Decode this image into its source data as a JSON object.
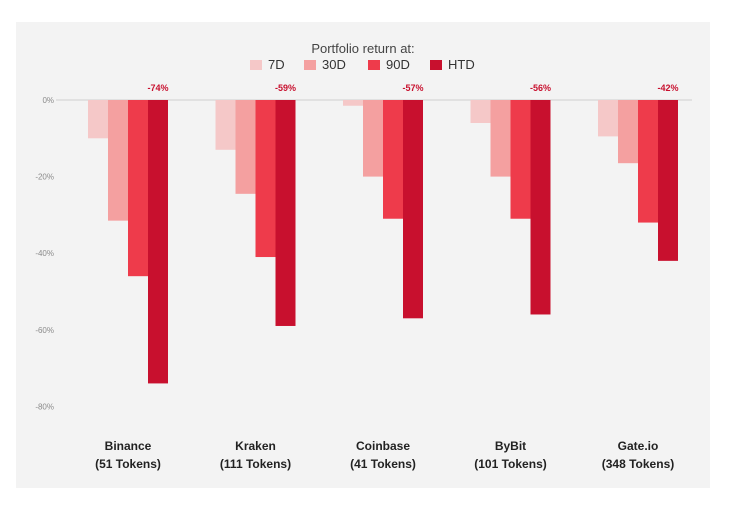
{
  "chart_data": {
    "type": "bar",
    "title": "Portfolio return at:",
    "categories": [
      {
        "name": "Binance",
        "sub": "(51 Tokens)"
      },
      {
        "name": "Kraken",
        "sub": "(111 Tokens)"
      },
      {
        "name": "Coinbase",
        "sub": "(41 Tokens)"
      },
      {
        "name": "ByBit",
        "sub": "(101 Tokens)"
      },
      {
        "name": "Gate.io",
        "sub": "(348 Tokens)"
      }
    ],
    "series": [
      {
        "name": "7D",
        "color": "#f5c8c8",
        "values": [
          -10,
          -13,
          -1.5,
          -6,
          -9.5
        ]
      },
      {
        "name": "30D",
        "color": "#f4a0a0",
        "values": [
          -31.5,
          -24.5,
          -20,
          -20,
          -16.5
        ]
      },
      {
        "name": "90D",
        "color": "#ee3b4b",
        "values": [
          -46,
          -41,
          -31,
          -31,
          -32
        ]
      },
      {
        "name": "HTD",
        "color": "#c8102e",
        "values": [
          -74,
          -59,
          -57,
          -56,
          -42
        ]
      }
    ],
    "data_labels": [
      "-74%",
      "-59%",
      "-57%",
      "-56%",
      "-42%"
    ],
    "yticks": [
      "0%",
      "-20%",
      "-40%",
      "-60%",
      "-80%"
    ],
    "ylim": [
      -80,
      0
    ],
    "grid": false,
    "legend_position": "top-center"
  }
}
